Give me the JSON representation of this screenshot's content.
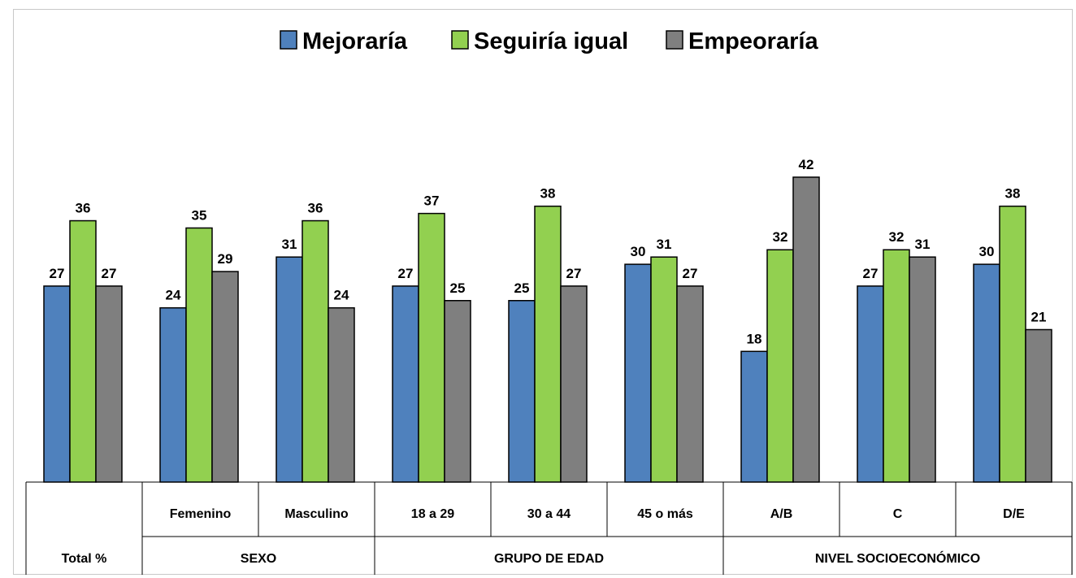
{
  "chart_data": {
    "type": "bar",
    "legend_position": "top-center",
    "series": [
      {
        "name": "Mejoraría",
        "color": "#4f81bd",
        "values": [
          27,
          24,
          31,
          27,
          25,
          30,
          18,
          27,
          30
        ]
      },
      {
        "name": "Seguiría igual",
        "color": "#92d050",
        "values": [
          36,
          35,
          36,
          37,
          38,
          31,
          32,
          32,
          38
        ]
      },
      {
        "name": "Empeoraría",
        "color": "#7f7f7f",
        "values": [
          27,
          29,
          24,
          25,
          27,
          27,
          42,
          31,
          21
        ]
      }
    ],
    "categories": [
      "",
      "Femenino",
      "Masculino",
      "18 a 29",
      "30 a 44",
      "45 o más",
      "A/B",
      "C",
      "D/E"
    ],
    "groups": [
      {
        "label": "Total %",
        "span": 1
      },
      {
        "label": "SEXO",
        "span": 2
      },
      {
        "label": "GRUPO DE EDAD",
        "span": 3
      },
      {
        "label": "NIVEL SOCIOECONÓMICO",
        "span": 3
      }
    ],
    "ylim": [
      0,
      42
    ],
    "grid": false
  }
}
